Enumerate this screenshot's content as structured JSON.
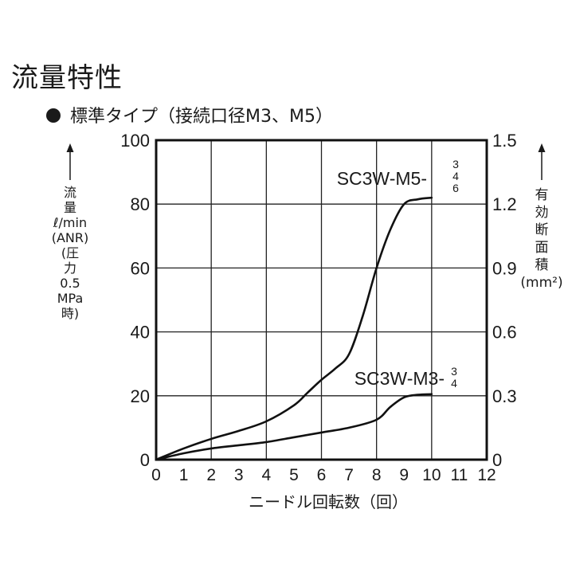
{
  "header": {
    "title": "流量特性",
    "subtitle": "標準タイプ（接続口径M3、M5）"
  },
  "axes": {
    "left_label_lines": [
      "流",
      "量",
      "ℓ/min",
      "(ANR)",
      "(圧",
      "力",
      "0.5",
      "MPa",
      "時)"
    ],
    "right_label_lines": [
      "有",
      "効",
      "断",
      "面",
      "積",
      "(mm²)"
    ],
    "x_label": "ニードル回転数（回）",
    "x_ticks": [
      "0",
      "1",
      "2",
      "3",
      "4",
      "5",
      "6",
      "7",
      "8",
      "9",
      "10",
      "11",
      "12"
    ],
    "y_left_ticks": [
      "0",
      "20",
      "40",
      "60",
      "80",
      "100"
    ],
    "y_right_ticks": [
      "0",
      "0.3",
      "0.6",
      "0.9",
      "1.2",
      "1.5"
    ]
  },
  "legend": {
    "m5": {
      "base": "SC3W-M5-",
      "suffixes": [
        "3",
        "4",
        "6"
      ]
    },
    "m3": {
      "base": "SC3W-M3-",
      "suffixes": [
        "3",
        "4"
      ]
    }
  },
  "chart_data": {
    "type": "line",
    "title": "流量特性",
    "subtitle": "標準タイプ（接続口径M3、M5）",
    "xlabel": "ニードル回転数（回）",
    "ylabel": "流量 ℓ/min (ANR) (圧力0.5MPa時)",
    "ylabel_right": "有効断面積 (mm²)",
    "xlim": [
      0,
      12
    ],
    "ylim": [
      0,
      100
    ],
    "ylim_right": [
      0,
      1.5
    ],
    "x_ticks": [
      0,
      1,
      2,
      3,
      4,
      5,
      6,
      7,
      8,
      9,
      10,
      11,
      12
    ],
    "y_ticks": [
      0,
      20,
      40,
      60,
      80,
      100
    ],
    "y_right_ticks": [
      0,
      0.3,
      0.6,
      0.9,
      1.2,
      1.5
    ],
    "grid": true,
    "series": [
      {
        "name": "SC3W-M5-3/4/6",
        "x": [
          0,
          1,
          2,
          3,
          4,
          5,
          5.5,
          6,
          6.5,
          7,
          7.5,
          8,
          8.5,
          9,
          9.5,
          10
        ],
        "values": [
          0,
          3.5,
          6.5,
          9,
          12,
          17,
          21,
          25,
          28.5,
          33,
          45,
          60,
          72,
          80,
          81.5,
          82
        ]
      },
      {
        "name": "SC3W-M3-3/4",
        "x": [
          0,
          1,
          2,
          3,
          4,
          5,
          6,
          7,
          8,
          8.5,
          9,
          9.5,
          10
        ],
        "values": [
          0,
          2,
          3.5,
          4.5,
          5.5,
          7,
          8.5,
          10,
          12.5,
          16.5,
          19.5,
          20.3,
          20.5
        ]
      }
    ]
  }
}
